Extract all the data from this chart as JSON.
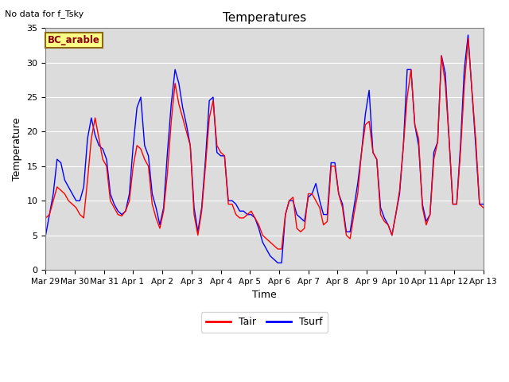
{
  "title": "Temperatures",
  "top_left_text": "No data for f_Tsky",
  "box_label": "BC_arable",
  "xlabel": "Time",
  "ylabel": "Temperature",
  "ylim": [
    0,
    35
  ],
  "yticks": [
    0,
    5,
    10,
    15,
    20,
    25,
    30,
    35
  ],
  "xtick_labels": [
    "Mar 29",
    "Mar 30",
    "Mar 31",
    "Apr 1",
    "Apr 2",
    "Apr 3",
    "Apr 4",
    "Apr 5",
    "Apr 6",
    "Apr 7",
    "Apr 8",
    "Apr 9",
    "Apr 10",
    "Apr 11",
    "Apr 12",
    "Apr 13"
  ],
  "legend_entries": [
    "Tair",
    "Tsurf"
  ],
  "tair": [
    7.5,
    8.0,
    10.0,
    12.0,
    11.5,
    11.0,
    10.0,
    9.5,
    9.0,
    8.0,
    7.5,
    13.0,
    19.0,
    22.0,
    19.0,
    16.0,
    15.0,
    10.0,
    9.0,
    8.0,
    7.8,
    8.5,
    10.0,
    15.0,
    18.0,
    17.5,
    16.0,
    15.0,
    9.5,
    7.5,
    6.0,
    8.5,
    14.0,
    21.5,
    27.0,
    24.0,
    22.0,
    20.0,
    18.0,
    8.0,
    5.0,
    8.5,
    15.0,
    22.0,
    24.5,
    18.0,
    17.0,
    16.5,
    9.5,
    9.5,
    8.0,
    7.5,
    7.5,
    8.0,
    8.5,
    7.5,
    6.5,
    5.0,
    4.5,
    4.0,
    3.5,
    3.0,
    3.0,
    8.0,
    10.0,
    10.5,
    6.0,
    5.5,
    6.0,
    11.0,
    11.0,
    10.0,
    9.0,
    6.5,
    7.0,
    15.0,
    15.0,
    11.0,
    9.0,
    5.0,
    4.5,
    8.0,
    11.0,
    17.0,
    21.0,
    21.5,
    17.0,
    16.0,
    8.0,
    7.0,
    6.5,
    5.0,
    8.0,
    11.5,
    18.0,
    25.0,
    29.0,
    21.0,
    19.0,
    9.0,
    6.5,
    8.0,
    16.0,
    18.5,
    31.0,
    27.0,
    19.0,
    9.5,
    9.5,
    17.0,
    26.5,
    33.5,
    26.0,
    19.0,
    9.5,
    9.0
  ],
  "tsurf": [
    5.0,
    8.0,
    11.0,
    16.0,
    15.5,
    13.0,
    12.0,
    11.0,
    10.0,
    10.0,
    12.0,
    19.0,
    22.0,
    19.5,
    18.0,
    17.5,
    16.0,
    11.0,
    9.5,
    8.5,
    8.0,
    8.5,
    11.0,
    18.0,
    23.5,
    25.0,
    18.0,
    16.5,
    11.0,
    9.0,
    6.5,
    9.0,
    17.0,
    24.0,
    29.0,
    27.0,
    23.5,
    21.0,
    18.0,
    9.0,
    5.5,
    9.0,
    16.0,
    24.5,
    25.0,
    17.0,
    16.5,
    16.5,
    10.0,
    10.0,
    9.5,
    8.5,
    8.5,
    8.0,
    8.0,
    7.5,
    6.0,
    4.0,
    3.0,
    2.0,
    1.5,
    1.0,
    1.0,
    8.0,
    10.0,
    10.0,
    8.0,
    7.5,
    7.0,
    10.5,
    11.0,
    12.5,
    10.0,
    8.0,
    8.0,
    15.5,
    15.5,
    11.0,
    9.5,
    5.5,
    5.5,
    9.0,
    12.5,
    17.0,
    22.5,
    26.0,
    17.0,
    16.0,
    9.0,
    7.5,
    6.5,
    5.0,
    8.0,
    11.0,
    18.0,
    29.0,
    29.0,
    21.0,
    18.0,
    9.5,
    7.0,
    8.0,
    17.0,
    18.5,
    31.0,
    28.5,
    19.0,
    9.5,
    9.5,
    18.0,
    29.0,
    34.0,
    26.0,
    18.0,
    9.5,
    9.5
  ]
}
